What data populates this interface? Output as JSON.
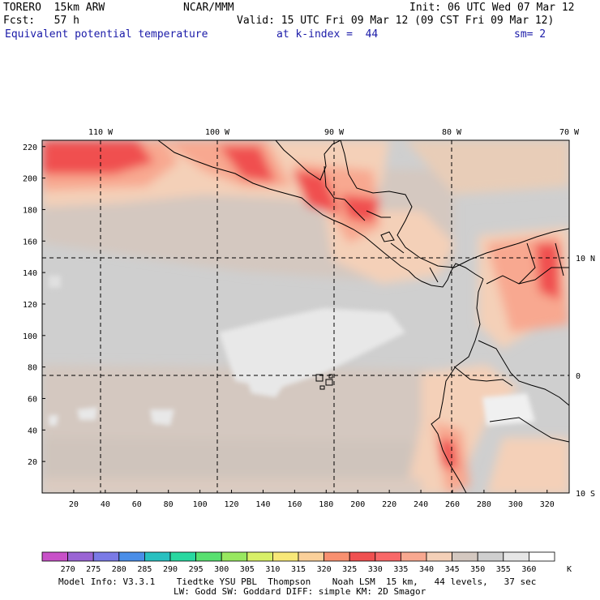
{
  "header": {
    "model": "TORERO  15km ARW",
    "org": "NCAR/MMM",
    "init": "Init: 06 UTC Wed 07 Mar 12",
    "fcst": "Fcst:   57 h",
    "valid": "Valid: 15 UTC Fri 09 Mar 12 (09 CST Fri 09 Mar 12)",
    "field": "Equivalent potential temperature",
    "level": "at k-index =  44",
    "smooth": "sm= 2"
  },
  "map": {
    "lon_labels": [
      "110 W",
      "100 W",
      "90 W",
      "80 W",
      "70 W"
    ],
    "lat_labels": [
      "10 N",
      "0",
      "10 S"
    ],
    "x_ticks": [
      "20",
      "40",
      "60",
      "80",
      "100",
      "120",
      "140",
      "160",
      "180",
      "200",
      "220",
      "240",
      "260",
      "280",
      "300",
      "320"
    ],
    "y_ticks": [
      "20",
      "40",
      "60",
      "80",
      "100",
      "120",
      "140",
      "160",
      "180",
      "200",
      "220"
    ],
    "grid_nx": 334,
    "grid_ny": 224
  },
  "colorbar": {
    "labels": [
      "270",
      "275",
      "280",
      "285",
      "290",
      "295",
      "300",
      "305",
      "310",
      "315",
      "320",
      "325",
      "330",
      "335",
      "340",
      "345",
      "350",
      "355",
      "360"
    ],
    "unit": "K",
    "colors": [
      "#c850c8",
      "#9a64d4",
      "#7a7ae6",
      "#4a8ee8",
      "#28c0c0",
      "#28d8a0",
      "#58e070",
      "#98e860",
      "#d8f068",
      "#f8e878",
      "#fad09a",
      "#f89070",
      "#f05050",
      "#f86868",
      "#f8a890",
      "#f4d0b8",
      "#d4c8c0",
      "#cfcfcf",
      "#e6e6e6",
      "#ffffff"
    ]
  },
  "footer": {
    "line1": "Model Info: V3.3.1    Tiedtke YSU PBL  Thompson    Noah LSM  15 km,   44 levels,   37 sec",
    "line2": "LW: Godd SW: Goddard DIFF: simple KM: 2D Smagor"
  }
}
